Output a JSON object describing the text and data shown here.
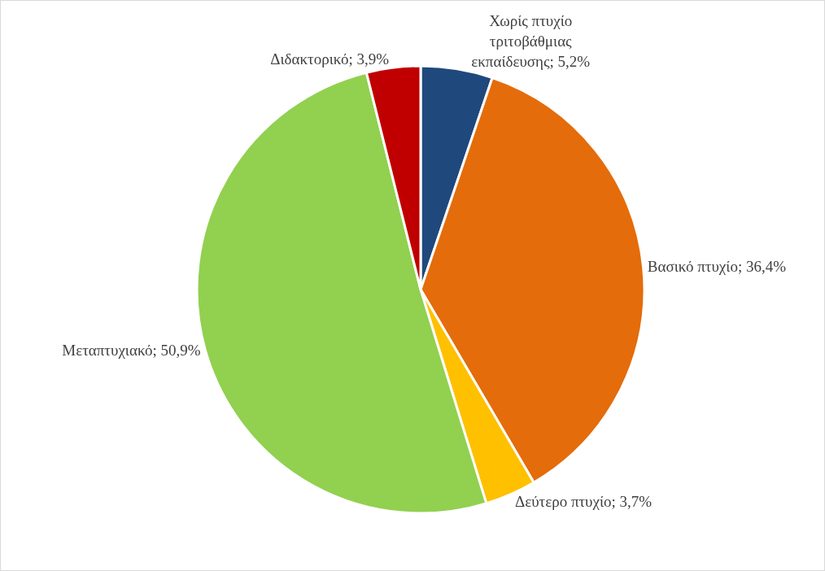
{
  "chart_data": {
    "type": "pie",
    "categories": [
      "Χωρίς πτυχίο τριτοβάθμιας εκπαίδευσης",
      "Βασικό πτυχίο",
      "Δεύτερο πτυχίο",
      "Μεταπτυχιακό",
      "Διδακτορικό"
    ],
    "values": [
      5.2,
      36.4,
      3.7,
      50.9,
      3.9
    ],
    "value_labels": [
      "5,2%",
      "36,4%",
      "3,7%",
      "50,9%",
      "3,9%"
    ],
    "colors": [
      "#1f497d",
      "#e46c0a",
      "#ffc000",
      "#92d050",
      "#c00000"
    ],
    "legend": false
  }
}
